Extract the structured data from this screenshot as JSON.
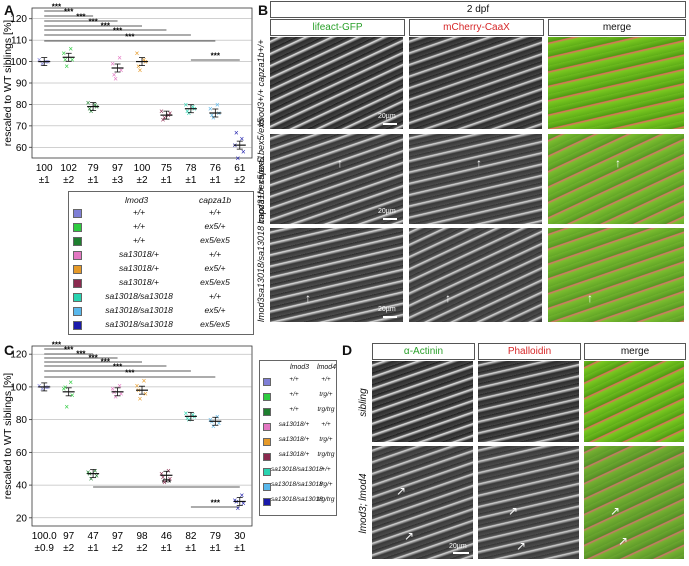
{
  "panels": {
    "A": "A",
    "B": "B",
    "C": "C",
    "D": "D"
  },
  "chart_data": [
    {
      "type": "scatter",
      "panel": "A",
      "ylabel": "rescaled to WT siblings [%]",
      "ylim": [
        55,
        125
      ],
      "yticks": [
        60,
        70,
        80,
        90,
        100,
        110,
        120
      ],
      "grid": true,
      "means": [
        100,
        102,
        79,
        97,
        100,
        75,
        78,
        76,
        61
      ],
      "sem_labels": [
        "±1",
        "±2",
        "±1",
        "±3",
        "±2",
        "±1",
        "±1",
        "±1",
        "±2"
      ],
      "mean_labels": [
        "100",
        "102",
        "79",
        "97",
        "100",
        "75",
        "78",
        "76",
        "61"
      ],
      "colors": [
        "#7f7fd6",
        "#2ecc40",
        "#1e7f2f",
        "#e377c2",
        "#e69a28",
        "#8b2a4f",
        "#28d4b0",
        "#59b8ec",
        "#1a1aaa"
      ],
      "points": [
        [
          99,
          100,
          101,
          100
        ],
        [
          98,
          101,
          104,
          106,
          101
        ],
        [
          77,
          79,
          81,
          80,
          78
        ],
        [
          92,
          96,
          99,
          102,
          94
        ],
        [
          96,
          100,
          104,
          101,
          98
        ],
        [
          74,
          76,
          77,
          75,
          73
        ],
        [
          76,
          78,
          80,
          79,
          77
        ],
        [
          74,
          76,
          78,
          80,
          75
        ],
        [
          55,
          58,
          61,
          64,
          67
        ]
      ],
      "significance": "***"
    },
    {
      "type": "scatter",
      "panel": "C",
      "ylabel": "rescaled to WT siblings [%]",
      "ylim": [
        15,
        125
      ],
      "yticks": [
        20,
        40,
        60,
        80,
        100,
        120
      ],
      "grid": true,
      "means": [
        100.0,
        97,
        47,
        97,
        98,
        46,
        82,
        79,
        30
      ],
      "mean_labels": [
        "100.0",
        "97",
        "47",
        "97",
        "98",
        "46",
        "82",
        "79",
        "30"
      ],
      "sem_labels": [
        "±0.9",
        "±2",
        "±1",
        "±2",
        "±2",
        "±1",
        "±1",
        "±1",
        "±1"
      ],
      "colors": [
        "#7f7fd6",
        "#2ecc40",
        "#1e7f2f",
        "#e377c2",
        "#e69a28",
        "#8b2a4f",
        "#28d4b0",
        "#59b8ec",
        "#1a1aaa"
      ],
      "points": [
        [
          99,
          100,
          101,
          100
        ],
        [
          88,
          95,
          99,
          103,
          100
        ],
        [
          44,
          46,
          48,
          49,
          47
        ],
        [
          94,
          96,
          99,
          101,
          97
        ],
        [
          93,
          96,
          101,
          104,
          98
        ],
        [
          42,
          44,
          47,
          49,
          45
        ],
        [
          80,
          82,
          84,
          83,
          81
        ],
        [
          76,
          78,
          80,
          82,
          79
        ],
        [
          26,
          29,
          31,
          34,
          30
        ]
      ],
      "significance": "***"
    }
  ],
  "legendA": {
    "header": [
      "lmod3",
      "capza1b"
    ],
    "rows": [
      [
        "+/+",
        "+/+"
      ],
      [
        "+/+",
        "ex5/+"
      ],
      [
        "+/+",
        "ex5/ex5"
      ],
      [
        "sa13018/+",
        "+/+"
      ],
      [
        "sa13018/+",
        "ex5/+"
      ],
      [
        "sa13018/+",
        "ex5/ex5"
      ],
      [
        "sa13018/sa13018",
        "+/+"
      ],
      [
        "sa13018/sa13018",
        "ex5/+"
      ],
      [
        "sa13018/sa13018",
        "ex5/ex5"
      ]
    ]
  },
  "legendC": {
    "header": [
      "lmod3",
      "lmod4"
    ],
    "rows": [
      [
        "+/+",
        "+/+"
      ],
      [
        "+/+",
        "trg/+"
      ],
      [
        "+/+",
        "trg/trg"
      ],
      [
        "sa13018/+",
        "+/+"
      ],
      [
        "sa13018/+",
        "trg/+"
      ],
      [
        "sa13018/+",
        "trg/trg"
      ],
      [
        "sa13018/sa13018",
        "+/+"
      ],
      [
        "sa13018/sa13018",
        "trg/+"
      ],
      [
        "sa13018/sa13018",
        "trg/trg"
      ]
    ]
  },
  "panelB": {
    "top": "2 dpf",
    "cols": [
      "lifeact-GFP",
      "mCherry-CaaX",
      "merge"
    ],
    "col_colors": [
      "#2aa02a",
      "#d62728",
      "#111111"
    ],
    "rows": [
      "lmod3+/+ capza1b+/+",
      "lmod3+/+ capza1bex5/ex5",
      "lmod3sa13018/sa13018 capza1bex5/ex5"
    ],
    "scale": "20µm"
  },
  "panelD": {
    "cols": [
      "α-Actinin",
      "Phalloidin",
      "merge"
    ],
    "col_colors": [
      "#2aa02a",
      "#d62728",
      "#111111"
    ],
    "rows": [
      "sibling",
      "lmod3; lmod4"
    ],
    "scale": "20µm"
  }
}
